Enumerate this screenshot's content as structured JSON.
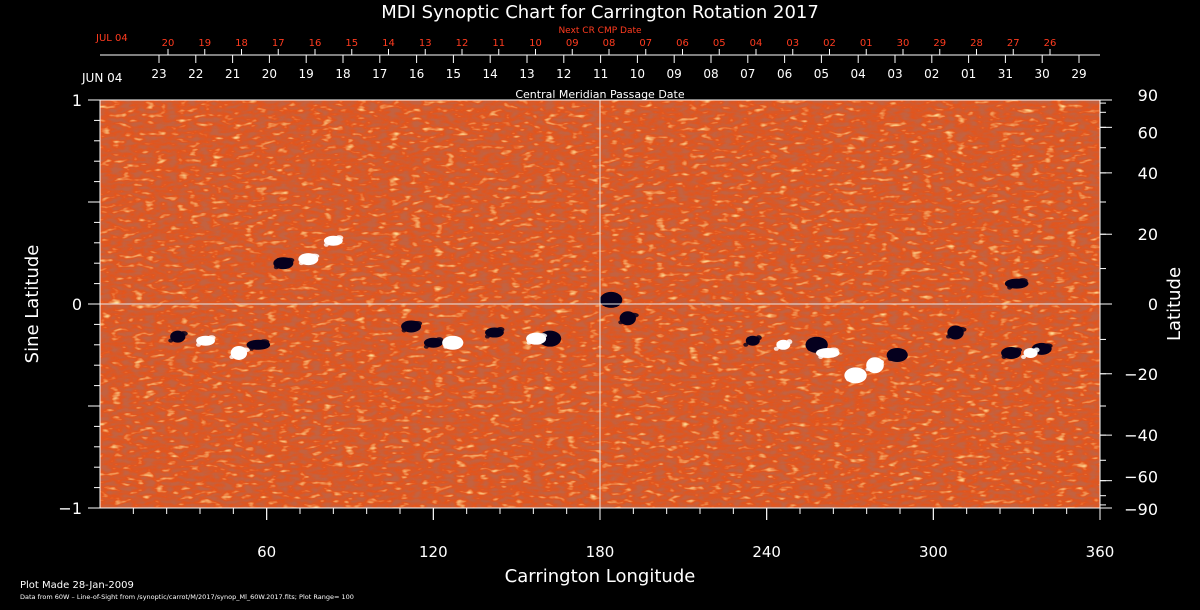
{
  "chart_data": {
    "type": "heatmap",
    "title": "MDI Synoptic Chart for Carrington Rotation 2017",
    "xlabel": "Carrington Longitude",
    "ylabel_left": "Sine Latitude",
    "ylabel_right": "Latitude",
    "xlim": [
      0,
      360
    ],
    "ylim": [
      -1,
      1
    ],
    "x_ticks": [
      60,
      120,
      180,
      240,
      300,
      360
    ],
    "y_ticks_left": [
      {
        "v": 1,
        "label": "1"
      },
      {
        "v": 0,
        "label": "0"
      },
      {
        "v": -1,
        "label": "−1"
      }
    ],
    "y_ticks_right": [
      90,
      60,
      40,
      20,
      0,
      -20,
      -40,
      -60,
      -90
    ],
    "crosshair": {
      "longitude": 180,
      "sine_latitude": 0
    },
    "cmp_axis": {
      "label": "Central Meridian Passage Date",
      "start_label": "JUN 04",
      "dates": [
        "23",
        "22",
        "21",
        "20",
        "19",
        "18",
        "17",
        "16",
        "15",
        "14",
        "13",
        "12",
        "11",
        "10",
        "09",
        "08",
        "07",
        "06",
        "05",
        "04",
        "03",
        "02",
        "01",
        "31",
        "30",
        "29"
      ]
    },
    "next_cmp_axis": {
      "label": "Next CR CMP Date",
      "start_label": "JUL 04",
      "dates": [
        "20",
        "19",
        "18",
        "17",
        "16",
        "15",
        "14",
        "13",
        "12",
        "11",
        "10",
        "09",
        "08",
        "07",
        "06",
        "05",
        "04",
        "03",
        "02",
        "01",
        "30",
        "29",
        "28",
        "27",
        "26"
      ]
    },
    "plot_range": "100",
    "active_regions": [
      {
        "lon": 75,
        "slat": 0.22,
        "polarity": "white"
      },
      {
        "lon": 66,
        "slat": 0.2,
        "polarity": "black"
      },
      {
        "lon": 84,
        "slat": 0.31,
        "polarity": "white"
      },
      {
        "lon": 57,
        "slat": -0.2,
        "polarity": "black"
      },
      {
        "lon": 50,
        "slat": -0.24,
        "polarity": "white"
      },
      {
        "lon": 28,
        "slat": -0.16,
        "polarity": "black"
      },
      {
        "lon": 38,
        "slat": -0.18,
        "polarity": "white"
      },
      {
        "lon": 112,
        "slat": -0.11,
        "polarity": "black"
      },
      {
        "lon": 120,
        "slat": -0.19,
        "polarity": "black"
      },
      {
        "lon": 127,
        "slat": -0.19,
        "polarity": "white"
      },
      {
        "lon": 142,
        "slat": -0.14,
        "polarity": "black"
      },
      {
        "lon": 162,
        "slat": -0.17,
        "polarity": "black"
      },
      {
        "lon": 157,
        "slat": -0.17,
        "polarity": "white"
      },
      {
        "lon": 184,
        "slat": 0.02,
        "polarity": "black"
      },
      {
        "lon": 190,
        "slat": -0.07,
        "polarity": "black"
      },
      {
        "lon": 235,
        "slat": -0.18,
        "polarity": "black"
      },
      {
        "lon": 246,
        "slat": -0.2,
        "polarity": "white"
      },
      {
        "lon": 258,
        "slat": -0.2,
        "polarity": "black"
      },
      {
        "lon": 262,
        "slat": -0.24,
        "polarity": "white"
      },
      {
        "lon": 287,
        "slat": -0.25,
        "polarity": "black"
      },
      {
        "lon": 279,
        "slat": -0.3,
        "polarity": "white"
      },
      {
        "lon": 272,
        "slat": -0.35,
        "polarity": "white"
      },
      {
        "lon": 308,
        "slat": -0.14,
        "polarity": "black"
      },
      {
        "lon": 328,
        "slat": -0.24,
        "polarity": "black"
      },
      {
        "lon": 339,
        "slat": -0.22,
        "polarity": "black"
      },
      {
        "lon": 335,
        "slat": -0.24,
        "polarity": "white"
      },
      {
        "lon": 330,
        "slat": 0.1,
        "polarity": "black"
      }
    ]
  },
  "footer": {
    "plot_made": "Plot Made 28-Jan-2009",
    "source": "Data from 60W – Line-of-Sight from /synoptic/carrot/M/2017/synop_Ml_60W.2017.fits; Plot Range=  100"
  },
  "colors": {
    "background": "#000000",
    "field_base": "#e4541a",
    "field_dark": "#8a1e12",
    "field_light": "#ffb24a",
    "positive": "#ffffff",
    "negative": "#05001e",
    "next_cmp_text": "#ff3b1f"
  }
}
